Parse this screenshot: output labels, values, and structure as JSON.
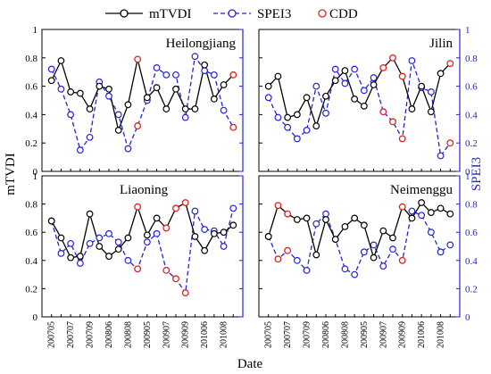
{
  "legend": [
    {
      "name": "mTVDI",
      "color": "#000000",
      "dash": "solid"
    },
    {
      "name": "SPEI3",
      "color": "#2222dd",
      "dash": "dashed"
    },
    {
      "name": "CDD",
      "color": "#dd2222",
      "dash": "none"
    }
  ],
  "axes": {
    "xlabel": "Date",
    "ylabel_left": "mTVDI",
    "ylabel_right": "SPEI3",
    "y_ticks": [
      "0",
      "0.2",
      "0.4",
      "0.6",
      "0.8",
      "1"
    ],
    "x_ticks": [
      "200705",
      "200707",
      "200709",
      "200806",
      "200808",
      "200905",
      "200907",
      "200909",
      "201006",
      "201008"
    ]
  },
  "chart_data": [
    {
      "type": "line",
      "title": "Heilongjiang",
      "x": [
        "200705",
        "200706",
        "200707",
        "200708",
        "200709",
        "200805",
        "200806",
        "200807",
        "200808",
        "200809",
        "200905",
        "200906",
        "200907",
        "200908",
        "200909",
        "201005",
        "201006",
        "201007",
        "201008",
        "201009"
      ],
      "ylim": [
        0,
        1
      ],
      "series": [
        {
          "name": "mTVDI",
          "values": [
            0.64,
            0.78,
            0.56,
            0.55,
            0.44,
            0.6,
            0.58,
            0.29,
            0.47,
            0.79,
            0.52,
            0.59,
            0.44,
            0.58,
            0.44,
            0.44,
            0.75,
            0.51,
            0.61,
            0.68
          ]
        },
        {
          "name": "SPEI3",
          "values": [
            0.72,
            0.58,
            0.4,
            0.15,
            0.24,
            0.63,
            0.53,
            0.4,
            0.16,
            0.32,
            0.5,
            0.73,
            0.68,
            0.68,
            0.38,
            0.81,
            0.71,
            0.68,
            0.43,
            0.31
          ]
        }
      ],
      "cdd_points": [
        {
          "x": "200809",
          "value": 0.79
        },
        {
          "x": "200809",
          "value": 0.32
        },
        {
          "x": "201009",
          "value": 0.68
        },
        {
          "x": "201009",
          "value": 0.31
        }
      ]
    },
    {
      "type": "line",
      "title": "Jilin",
      "x": [
        "200705",
        "200706",
        "200707",
        "200708",
        "200709",
        "200805",
        "200806",
        "200807",
        "200808",
        "200809",
        "200905",
        "200906",
        "200907",
        "200908",
        "200909",
        "201005",
        "201006",
        "201007",
        "201008",
        "201009"
      ],
      "ylim": [
        0,
        1
      ],
      "series": [
        {
          "name": "mTVDI",
          "values": [
            0.6,
            0.67,
            0.38,
            0.4,
            0.52,
            0.32,
            0.53,
            0.64,
            0.71,
            0.51,
            0.46,
            0.61,
            0.73,
            0.8,
            0.67,
            0.44,
            0.6,
            0.42,
            0.69,
            0.76
          ]
        },
        {
          "name": "SPEI3",
          "values": [
            0.52,
            0.38,
            0.31,
            0.23,
            0.29,
            0.6,
            0.41,
            0.72,
            0.62,
            0.72,
            0.57,
            0.66,
            0.42,
            0.35,
            0.23,
            0.78,
            0.59,
            0.56,
            0.11,
            0.2
          ]
        }
      ],
      "cdd_points": [
        {
          "x": "200907",
          "value": 0.73
        },
        {
          "x": "200907",
          "value": 0.42
        },
        {
          "x": "200908",
          "value": 0.8
        },
        {
          "x": "200908",
          "value": 0.35
        },
        {
          "x": "200909",
          "value": 0.67
        },
        {
          "x": "200909",
          "value": 0.23
        },
        {
          "x": "201009",
          "value": 0.76
        },
        {
          "x": "201009",
          "value": 0.2
        }
      ]
    },
    {
      "type": "line",
      "title": "Liaoning",
      "x": [
        "200705",
        "200706",
        "200707",
        "200708",
        "200709",
        "200805",
        "200806",
        "200807",
        "200808",
        "200809",
        "200905",
        "200906",
        "200907",
        "200908",
        "200909",
        "201005",
        "201006",
        "201007",
        "201008",
        "201009"
      ],
      "ylim": [
        0,
        1
      ],
      "series": [
        {
          "name": "mTVDI",
          "values": [
            0.68,
            0.56,
            0.42,
            0.43,
            0.73,
            0.5,
            0.43,
            0.48,
            0.56,
            0.78,
            0.58,
            0.7,
            0.63,
            0.77,
            0.81,
            0.57,
            0.47,
            0.59,
            0.6,
            0.65
          ]
        },
        {
          "name": "SPEI3",
          "values": [
            0.68,
            0.45,
            0.52,
            0.38,
            0.52,
            0.56,
            0.59,
            0.53,
            0.4,
            0.34,
            0.53,
            0.59,
            0.33,
            0.27,
            0.17,
            0.75,
            0.62,
            0.61,
            0.5,
            0.77
          ]
        }
      ],
      "cdd_points": [
        {
          "x": "200809",
          "value": 0.78
        },
        {
          "x": "200809",
          "value": 0.34
        },
        {
          "x": "200907",
          "value": 0.63
        },
        {
          "x": "200907",
          "value": 0.33
        },
        {
          "x": "200908",
          "value": 0.77
        },
        {
          "x": "200908",
          "value": 0.27
        },
        {
          "x": "200909",
          "value": 0.81
        },
        {
          "x": "200909",
          "value": 0.17
        }
      ]
    },
    {
      "type": "line",
      "title": "Neimenggu",
      "x": [
        "200705",
        "200706",
        "200707",
        "200708",
        "200709",
        "200805",
        "200806",
        "200807",
        "200808",
        "200809",
        "200905",
        "200906",
        "200907",
        "200908",
        "200909",
        "201005",
        "201006",
        "201007",
        "201008",
        "201009"
      ],
      "ylim": [
        0,
        1
      ],
      "series": [
        {
          "name": "mTVDI",
          "values": [
            0.57,
            0.79,
            0.73,
            0.69,
            0.7,
            0.44,
            0.69,
            0.55,
            0.64,
            0.7,
            0.65,
            0.42,
            0.61,
            0.56,
            0.78,
            0.7,
            0.81,
            0.74,
            0.77,
            0.73
          ]
        },
        {
          "name": "SPEI3",
          "values": [
            0.57,
            0.41,
            0.47,
            0.4,
            0.33,
            0.66,
            0.73,
            0.55,
            0.34,
            0.3,
            0.46,
            0.51,
            0.36,
            0.48,
            0.4,
            0.75,
            0.72,
            0.6,
            0.46,
            0.51
          ]
        }
      ],
      "cdd_points": [
        {
          "x": "200706",
          "value": 0.79
        },
        {
          "x": "200706",
          "value": 0.41
        },
        {
          "x": "200707",
          "value": 0.73
        },
        {
          "x": "200707",
          "value": 0.47
        },
        {
          "x": "200909",
          "value": 0.78
        },
        {
          "x": "200909",
          "value": 0.4
        }
      ]
    }
  ]
}
